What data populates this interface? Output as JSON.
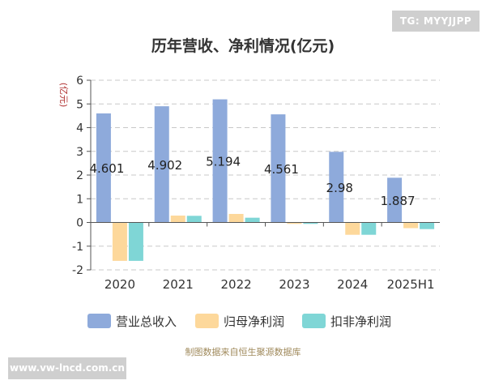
{
  "watermark_top": "TG: MYYJJPP",
  "watermark_bottom": "www.vw-lncd.com.cn",
  "source_note": "制图数据来自恒生聚源数据库",
  "chart_data": {
    "type": "bar",
    "title": "历年营收、净利情况(亿元)",
    "ylabel": "(亿元)",
    "xlabel": "",
    "ylim": [
      -2,
      6
    ],
    "yticks": [
      -2,
      -1,
      0,
      1,
      2,
      3,
      4,
      5,
      6
    ],
    "grid": true,
    "legend_position": "bottom",
    "categories": [
      "2020",
      "2021",
      "2022",
      "2023",
      "2024",
      "2025H1"
    ],
    "series": [
      {
        "name": "营业总收入",
        "color": "#8eaadb",
        "values": [
          4.601,
          4.902,
          5.194,
          4.561,
          2.98,
          1.887
        ],
        "labels": [
          "4.601",
          "4.902",
          "5.194",
          "4.561",
          "2.98",
          "1.887"
        ]
      },
      {
        "name": "归母净利润",
        "color": "#fdd89b",
        "values": [
          -1.62,
          0.29,
          0.36,
          -0.06,
          -0.52,
          -0.24
        ]
      },
      {
        "name": "扣非净利润",
        "color": "#7fd6d6",
        "values": [
          -1.62,
          0.28,
          0.2,
          -0.06,
          -0.52,
          -0.28
        ]
      }
    ]
  }
}
